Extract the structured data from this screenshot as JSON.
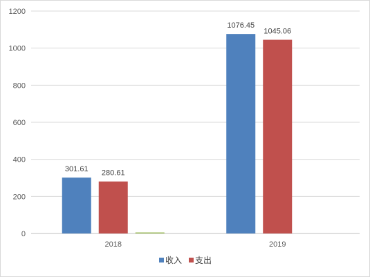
{
  "chart_data": {
    "type": "bar",
    "categories": [
      "2018",
      "2019"
    ],
    "series": [
      {
        "name": "收入",
        "color": "#4f81bd",
        "values": [
          301.61,
          1076.45
        ]
      },
      {
        "name": "支出",
        "color": "#c0504d",
        "values": [
          280.61,
          1045.06
        ]
      },
      {
        "name": "",
        "color": "#9bbb59",
        "values": [
          3,
          null
        ]
      }
    ],
    "ylim": [
      0,
      1200
    ],
    "yticks": [
      "0",
      "200",
      "400",
      "600",
      "800",
      "1000",
      "1200"
    ],
    "data_labels": [
      [
        "301.61",
        "1076.45"
      ],
      [
        "280.61",
        "1045.06"
      ],
      [
        "",
        ""
      ]
    ],
    "grid": true,
    "legend_position": "bottom",
    "title": "",
    "xlabel": "",
    "ylabel": ""
  }
}
